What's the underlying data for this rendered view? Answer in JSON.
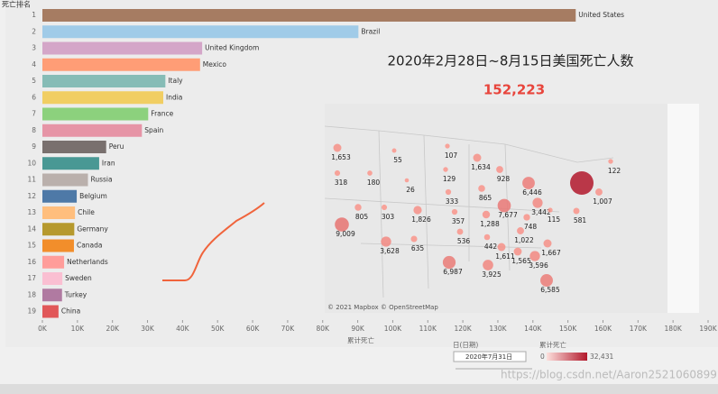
{
  "header": "死亡排名",
  "chart_data": {
    "type": "bar",
    "orientation": "horizontal",
    "ranks": [
      1,
      2,
      3,
      4,
      5,
      6,
      7,
      8,
      9,
      10,
      11,
      12,
      13,
      14,
      15,
      16,
      17,
      18,
      19
    ],
    "categories": [
      "United States",
      "Brazil",
      "United Kingdom",
      "Mexico",
      "Italy",
      "India",
      "France",
      "Spain",
      "Peru",
      "Iran",
      "Russia",
      "Belgium",
      "Chile",
      "Germany",
      "Canada",
      "Netherlands",
      "Sweden",
      "Turkey",
      "China"
    ],
    "values": [
      152223,
      90200,
      45600,
      45000,
      35100,
      34500,
      30200,
      28400,
      18200,
      16200,
      13000,
      9800,
      9300,
      9100,
      9000,
      6200,
      5700,
      5600,
      4600
    ],
    "colors": [
      "#a67c62",
      "#a0cbe8",
      "#d4a6c8",
      "#ff9d76",
      "#86bcb6",
      "#f1ce63",
      "#8cd17d",
      "#e694a6",
      "#79706e",
      "#499894",
      "#bab0ac",
      "#4e79a7",
      "#ffbe7d",
      "#b6992d",
      "#f28e2b",
      "#ff9d9a",
      "#fabfd2",
      "#b07aa1",
      "#e15759"
    ],
    "xlim": [
      0,
      190000
    ],
    "xticks": [
      {
        "value": 0,
        "label": "0K"
      },
      {
        "value": 10000,
        "label": "10K"
      },
      {
        "value": 20000,
        "label": "20K"
      },
      {
        "value": 30000,
        "label": "30K"
      },
      {
        "value": 40000,
        "label": "40K"
      },
      {
        "value": 50000,
        "label": "50K"
      },
      {
        "value": 60000,
        "label": "60K"
      },
      {
        "value": 70000,
        "label": "70K"
      },
      {
        "value": 80000,
        "label": "80K"
      },
      {
        "value": 90000,
        "label": "90K"
      },
      {
        "value": 100000,
        "label": "100K"
      },
      {
        "value": 110000,
        "label": "110K"
      },
      {
        "value": 120000,
        "label": "120K"
      },
      {
        "value": 130000,
        "label": "130K"
      },
      {
        "value": 140000,
        "label": "140K"
      },
      {
        "value": 150000,
        "label": "150K"
      },
      {
        "value": 160000,
        "label": "160K"
      },
      {
        "value": 170000,
        "label": "170K"
      },
      {
        "value": 180000,
        "label": "180K"
      },
      {
        "value": 190000,
        "label": "190K"
      }
    ],
    "xlabel": "累计死亡"
  },
  "map": {
    "title": "2020年2月28日~8月15日美国死亡人数",
    "total": "152,223",
    "values": [
      1653,
      55,
      107,
      1634,
      928,
      122,
      318,
      180,
      26,
      129,
      6446,
      1007,
      333,
      865,
      7677,
      3442,
      115,
      581,
      805,
      303,
      1826,
      357,
      1288,
      748,
      9009,
      536,
      442,
      1022,
      3628,
      635,
      1611,
      1667,
      1565,
      3596,
      6987,
      3925,
      6585,
      32431
    ],
    "value_labels": [
      "1,653",
      "55",
      "107",
      "1,634",
      "928",
      "122",
      "318",
      "180",
      "26",
      "129",
      "6,446",
      "1,007",
      "333",
      "865",
      "7,677",
      "3,442",
      "115",
      "581",
      "805",
      "303",
      "1,826",
      "357",
      "1,288",
      "748",
      "9,009",
      "536",
      "442",
      "1,022",
      "3,628",
      "635",
      "1,611",
      "1,667",
      "1,565",
      "3,596",
      "6,987",
      "3,925",
      "6,585",
      null
    ],
    "attribution": "© 2021 Mapbox © OpenStreetMap",
    "legend": {
      "title": "累计死亡",
      "range": [
        0,
        32431
      ],
      "max_label": "32,431"
    }
  },
  "controls": {
    "filter_label": "日(日期)",
    "date": "2020年7月31日"
  },
  "watermark": "https://blog.csdn.net/Aaron2521060899"
}
